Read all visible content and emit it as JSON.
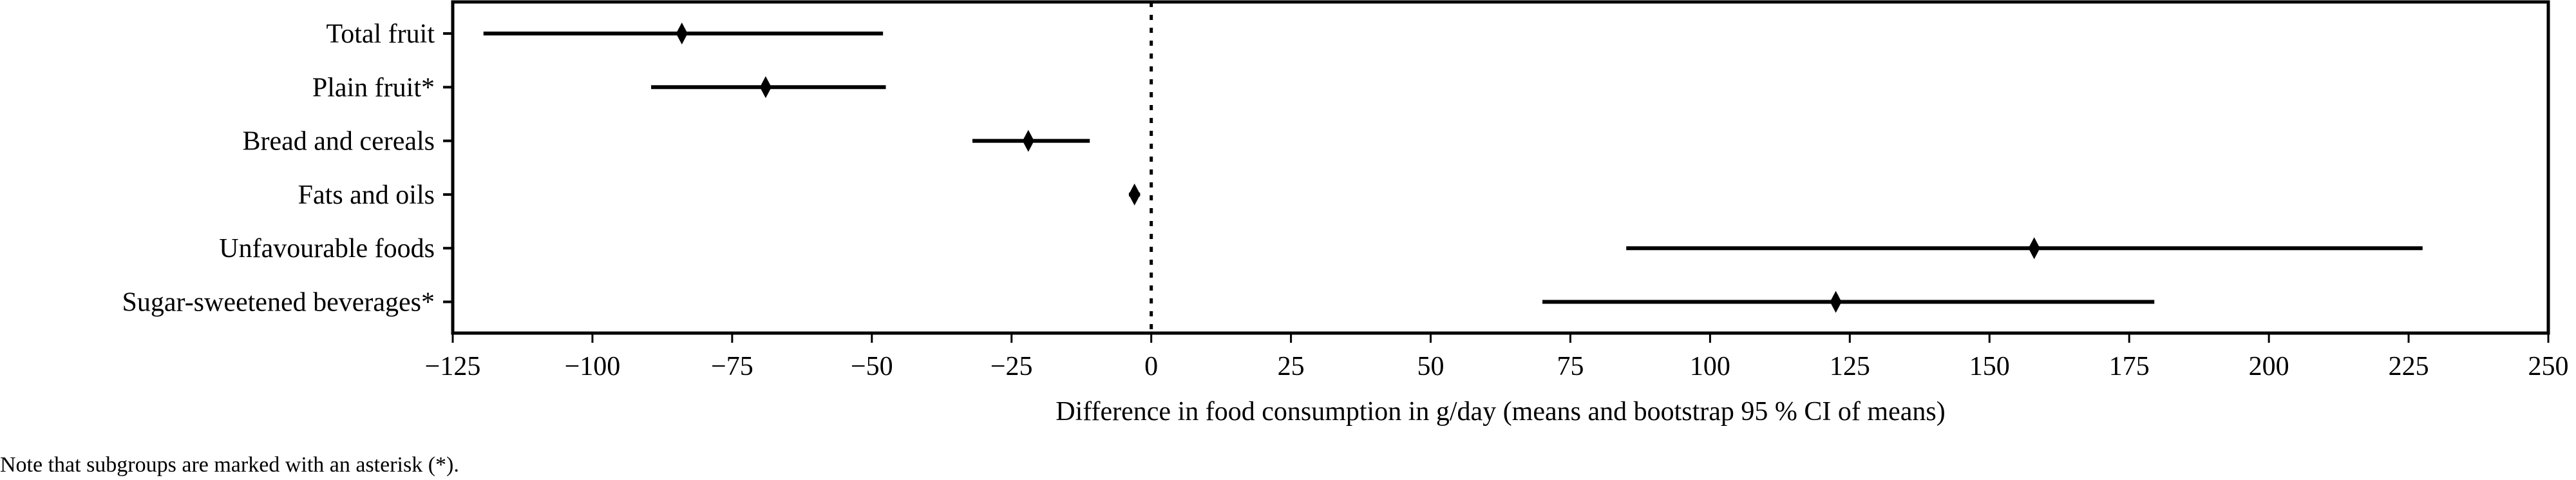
{
  "chart_data": {
    "type": "forest",
    "title": "",
    "xlabel": "Difference in food consumption in g/day (means and bootstrap 95 % CI of means)",
    "ylabel": "",
    "xlim": [
      -125,
      250
    ],
    "xticks": [
      -125,
      -100,
      -75,
      -50,
      -25,
      0,
      25,
      50,
      75,
      100,
      125,
      150,
      175,
      200,
      225,
      250
    ],
    "xtick_labels": [
      "−125",
      "−100",
      "−75",
      "−50",
      "−25",
      "0",
      "25",
      "50",
      "75",
      "100",
      "125",
      "150",
      "175",
      "200",
      "225",
      "250"
    ],
    "reference_line": 0,
    "grid": false,
    "marker_color": "#000000",
    "categories": [
      "Total fruit",
      "Plain fruit*",
      "Bread and cereals",
      "Fats and oils",
      "Unfavourable foods",
      "Sugar-sweetened beverages*"
    ],
    "means": [
      -84,
      -69,
      -22,
      -3,
      158,
      122.5
    ],
    "ci_lower": [
      -119.5,
      -89.5,
      -32,
      -4,
      85,
      70
    ],
    "ci_upper": [
      -48,
      -47.5,
      -11,
      -2,
      227.5,
      179.5
    ]
  },
  "note": "Note that subgroups are marked with an asterisk (*)."
}
